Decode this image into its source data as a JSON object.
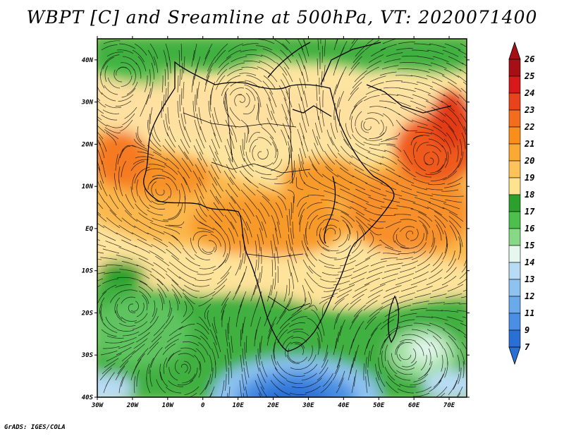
{
  "title": "WBPT [C] and Sreamline at 500hPa, VT: 2020071400",
  "credit": "GrADS: IGES/COLA",
  "map": {
    "lon_range": [
      -30,
      75
    ],
    "lat_range": [
      -40,
      45
    ],
    "lat_labels": [
      "40N",
      "30N",
      "20N",
      "10N",
      "EQ",
      "10S",
      "20S",
      "30S",
      "40S"
    ],
    "lon_labels": [
      "30W",
      "20W",
      "10W",
      "0",
      "10E",
      "20E",
      "30E",
      "40E",
      "50E",
      "60E",
      "70E"
    ]
  },
  "colorbar": {
    "labels": [
      "26",
      "25",
      "24",
      "23",
      "22",
      "21",
      "20",
      "19",
      "18",
      "17",
      "16",
      "15",
      "14",
      "13",
      "12",
      "11",
      "9",
      "7"
    ],
    "colors": [
      "#a50f15",
      "#d7191c",
      "#e8431c",
      "#f46d1f",
      "#f98e1d",
      "#fca934",
      "#fdc25a",
      "#fee38f",
      "#2ca02c",
      "#4cbf4c",
      "#86d986",
      "#e5f8ee",
      "#b8dcf5",
      "#8ec3f0",
      "#6aa9ea",
      "#4a8fe3",
      "#2a6fd6"
    ]
  }
}
